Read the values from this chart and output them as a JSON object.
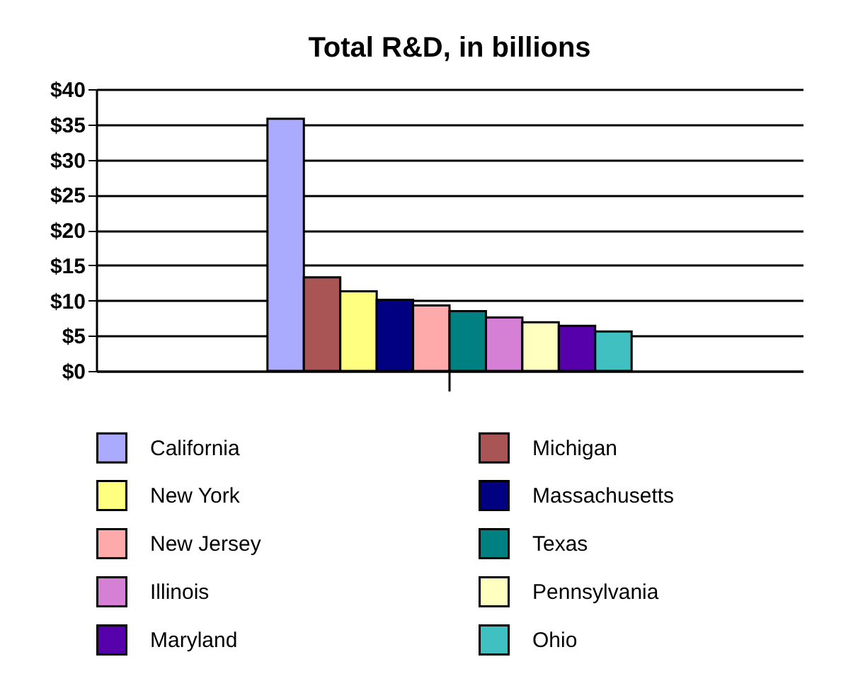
{
  "chart_data": {
    "type": "bar",
    "title": "Total R&D, in billions",
    "categories": [
      null
    ],
    "series": [
      {
        "name": "California",
        "color": "#aaaaff",
        "values": [
          35.8
        ]
      },
      {
        "name": "Michigan",
        "color": "#aa5555",
        "values": [
          13.3
        ]
      },
      {
        "name": "New York",
        "color": "#ffff80",
        "values": [
          11.3
        ]
      },
      {
        "name": "Massachusetts",
        "color": "#000080",
        "values": [
          10.1
        ]
      },
      {
        "name": "New Jersey",
        "color": "#ffaaaa",
        "values": [
          9.3
        ]
      },
      {
        "name": "Texas",
        "color": "#008080",
        "values": [
          8.5
        ]
      },
      {
        "name": "Illinois",
        "color": "#d580d5",
        "values": [
          7.6
        ]
      },
      {
        "name": "Pennsylvania",
        "color": "#ffffc0",
        "values": [
          6.9
        ]
      },
      {
        "name": "Maryland",
        "color": "#5500aa",
        "values": [
          6.4
        ]
      },
      {
        "name": "Ohio",
        "color": "#40c0c0",
        "values": [
          5.6
        ]
      }
    ],
    "ylim": [
      0,
      40
    ],
    "yticks": [
      {
        "value": 0,
        "label": "$0"
      },
      {
        "value": 5,
        "label": "$5"
      },
      {
        "value": 10,
        "label": "$10"
      },
      {
        "value": 15,
        "label": "$15"
      },
      {
        "value": 20,
        "label": "$20"
      },
      {
        "value": 25,
        "label": "$25"
      },
      {
        "value": 30,
        "label": "$30"
      },
      {
        "value": 35,
        "label": "$35"
      },
      {
        "value": 40,
        "label": "$40"
      }
    ],
    "grid": "y",
    "legend": "bottom",
    "tick_labels": "y"
  }
}
